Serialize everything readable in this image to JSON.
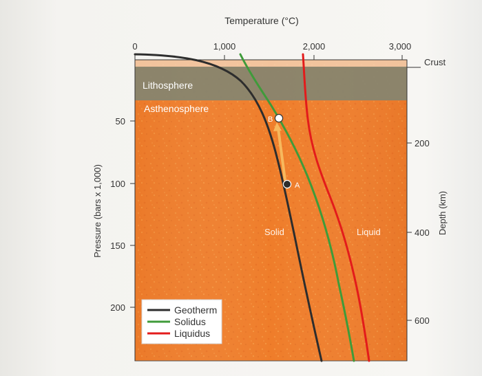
{
  "figure": {
    "top_axis": {
      "title": "Temperature (°C)",
      "ticks": [
        "0",
        "1,000",
        "2,000",
        "3,000"
      ],
      "values": [
        0,
        1000,
        2000,
        3000
      ]
    },
    "left_axis": {
      "title": "Pressure (bars x 1,000)",
      "ticks": [
        "50",
        "100",
        "150",
        "200"
      ],
      "values": [
        50,
        100,
        150,
        200
      ]
    },
    "right_axis": {
      "title": "Depth (km)",
      "ticks": [
        "200",
        "400",
        "600"
      ],
      "values": [
        200,
        400,
        600
      ],
      "top_label": "Crust"
    },
    "layers": {
      "lithosphere": "Lithosphere",
      "asthenosphere": "Asthenosphere"
    },
    "region_labels": {
      "solid": "Solid",
      "liquid": "Liquid"
    },
    "points": {
      "a": "A",
      "b": "B"
    },
    "legend": [
      {
        "label": "Geotherm",
        "color": "#2d2d2d"
      },
      {
        "label": "Solidus",
        "color": "#3f9b3a"
      },
      {
        "label": "Liquidus",
        "color": "#e31b1b"
      }
    ],
    "colors": {
      "mantle_orange": "#ef7d2a",
      "lithosphere_gray": "#87856f",
      "geotherm": "#2d2d2d",
      "solidus": "#3f9b3a",
      "liquidus": "#e31b1b",
      "arrow": "#f7b85d"
    }
  }
}
